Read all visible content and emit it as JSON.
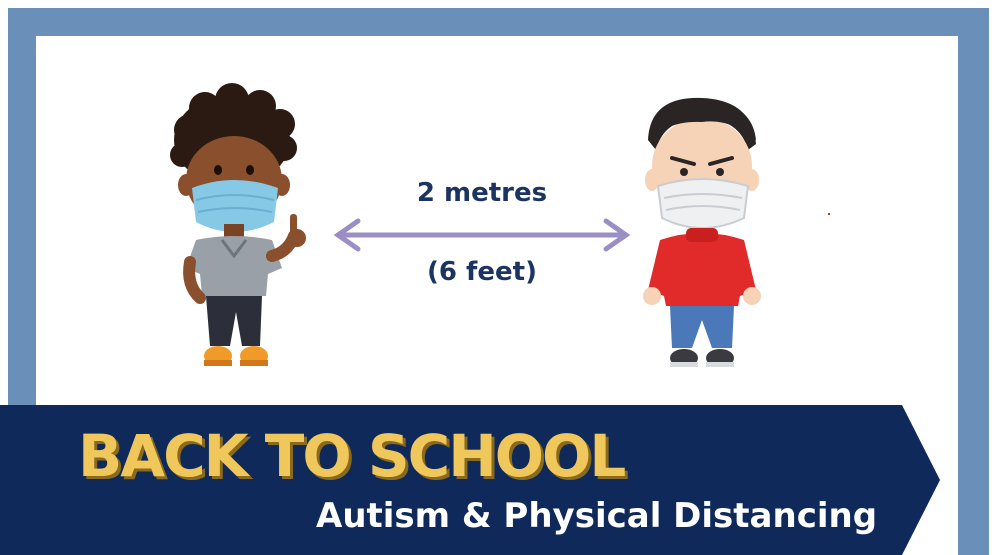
{
  "distance": {
    "metric": "2 metres",
    "imperial": "(6 feet)"
  },
  "banner": {
    "title": "BACK TO SCHOOL",
    "subtitle": "Autism & Physical Distancing"
  },
  "colors": {
    "frame": "#6a8fb8",
    "navy": "#0f2a5a",
    "gold": "#f0c75a",
    "arrow": "#9b8ec4",
    "label": "#1c3461"
  }
}
